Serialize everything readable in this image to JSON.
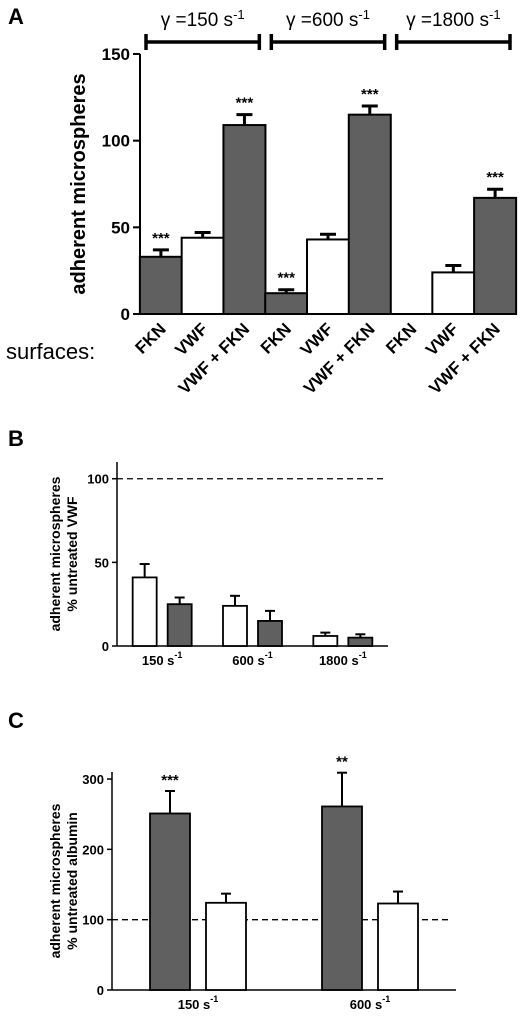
{
  "colors": {
    "filled": "#606060",
    "open": "#ffffff",
    "stroke": "#000000"
  },
  "chart_data": [
    {
      "panel": "A",
      "type": "bar",
      "ylabel": "adherent microspheres",
      "ylim": [
        0,
        150
      ],
      "yticks": [
        "0",
        "50",
        "100",
        "150"
      ],
      "row_label": "surfaces:",
      "groups": [
        {
          "label": "γ =150 s",
          "sup": "-1"
        },
        {
          "label": "γ =600 s",
          "sup": "-1"
        },
        {
          "label": "γ =1800 s",
          "sup": "-1"
        }
      ],
      "categories": [
        "FKN",
        "VWF",
        "VWF + FKN",
        "FKN",
        "VWF",
        "VWF + FKN",
        "FKN",
        "VWF",
        "VWF + FKN"
      ],
      "values": [
        33,
        44,
        109,
        12,
        43,
        115,
        0,
        24,
        67
      ],
      "errors": [
        4,
        3,
        6,
        2,
        3,
        5,
        0,
        4,
        5
      ],
      "fill": [
        "filled",
        "open",
        "filled",
        "filled",
        "open",
        "filled",
        "filled",
        "open",
        "filled"
      ],
      "annotations": [
        "***",
        "",
        "***",
        "***",
        "",
        "***",
        "",
        "",
        "***"
      ]
    },
    {
      "panel": "B",
      "type": "bar",
      "ylabel": [
        "adherent microspheres",
        "% untreated VWF"
      ],
      "ylim": [
        0,
        110
      ],
      "yticks": [
        "0",
        "50",
        "100"
      ],
      "reference_line": 100,
      "categories": [
        {
          "label": "150 s",
          "sup": "-1"
        },
        {
          "label": "600 s",
          "sup": "-1"
        },
        {
          "label": "1800 s",
          "sup": "-1"
        }
      ],
      "series": [
        {
          "fill": "open",
          "values": [
            41,
            24,
            6
          ],
          "errors": [
            8,
            6,
            2
          ]
        },
        {
          "fill": "filled",
          "values": [
            25,
            15,
            5
          ],
          "errors": [
            4,
            6,
            2
          ]
        }
      ]
    },
    {
      "panel": "C",
      "type": "bar",
      "ylabel": [
        "adherent microspheres",
        "% untreated albumin"
      ],
      "ylim": [
        0,
        310
      ],
      "yticks": [
        "0",
        "100",
        "200",
        "300"
      ],
      "reference_line": 100,
      "categories": [
        {
          "label": "150 s",
          "sup": "-1"
        },
        {
          "label": "600 s",
          "sup": "-1"
        }
      ],
      "series": [
        {
          "fill": "filled",
          "values": [
            251,
            261
          ],
          "errors": [
            32,
            48
          ],
          "annotations": [
            "***",
            "**"
          ]
        },
        {
          "fill": "open",
          "values": [
            124,
            123
          ],
          "errors": [
            13,
            17
          ]
        }
      ]
    }
  ]
}
